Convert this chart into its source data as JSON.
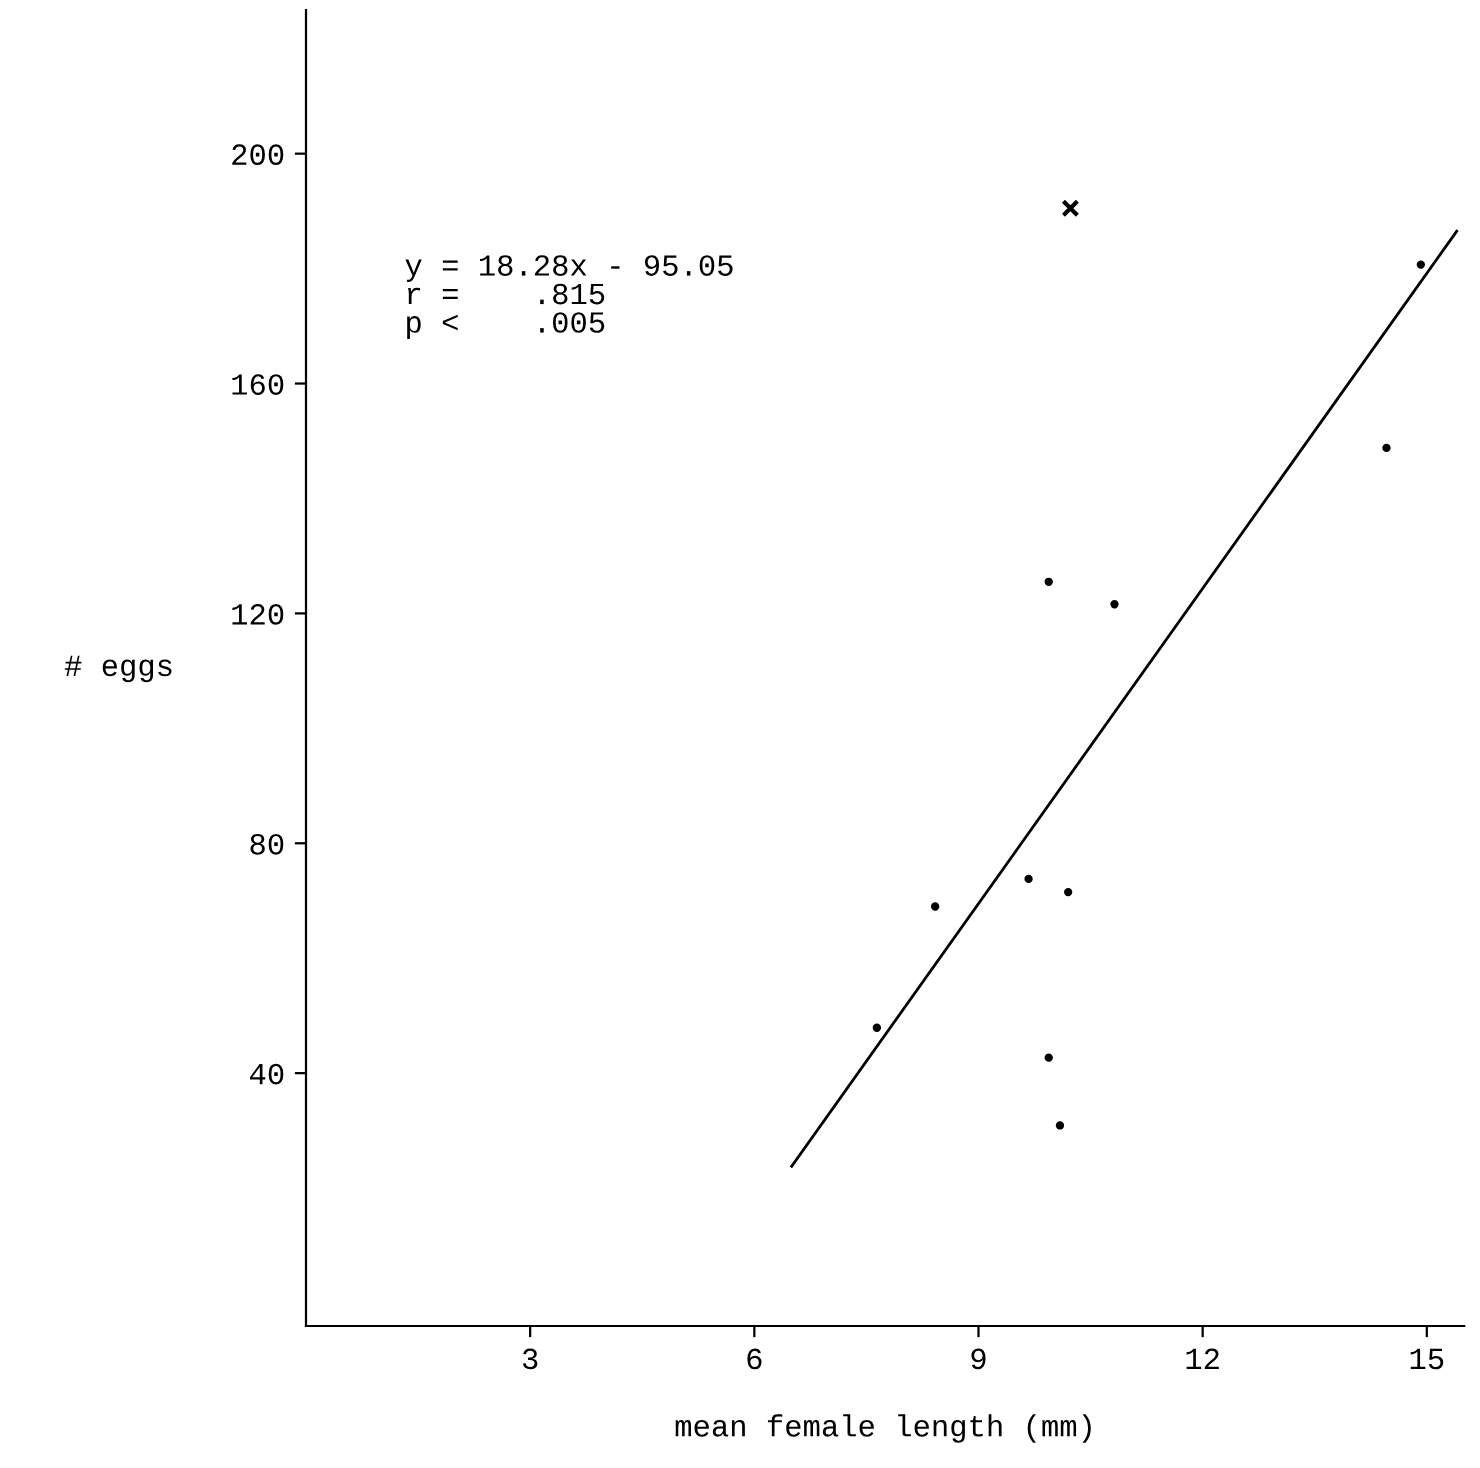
{
  "chart_data": {
    "type": "scatter",
    "xlabel": "mean female length (mm)",
    "ylabel": "# eggs",
    "xlim": [
      0,
      15.5
    ],
    "ylim": [
      -4,
      225
    ],
    "xticks": [
      3,
      6,
      9,
      12,
      15
    ],
    "yticks": [
      40,
      80,
      120,
      160,
      200
    ],
    "grid": false,
    "legend": false,
    "annotations": [
      "y = 18.28x - 95.05",
      "r =    .815",
      "p <    .005"
    ],
    "series": [
      {
        "type": "scatter",
        "marker": "circle",
        "color": "#000000",
        "x": [
          14.92,
          14.46,
          9.94,
          10.82,
          9.67,
          10.2,
          8.42,
          7.64,
          9.94,
          10.09
        ],
        "values": [
          180.7,
          148.8,
          125.5,
          121.6,
          73.8,
          71.5,
          69,
          47.9,
          42.7,
          30.9
        ]
      },
      {
        "type": "scatter",
        "marker": "cross",
        "color": "#000000",
        "x": [
          10.23
        ],
        "values": [
          190.5
        ]
      },
      {
        "type": "line",
        "marker": "none",
        "line_style": "solid",
        "color": "#000000",
        "x": [
          6.5,
          15.4
        ],
        "values": [
          23.8,
          186.5
        ]
      }
    ]
  }
}
